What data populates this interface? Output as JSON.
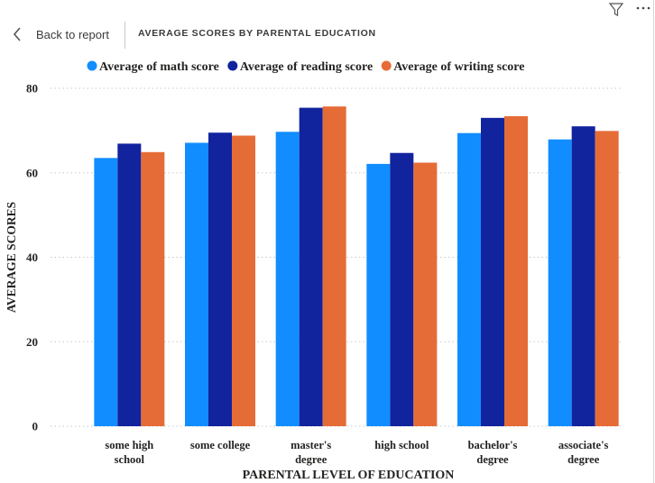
{
  "header": {
    "back_label": "Back to report",
    "title": "AVERAGE SCORES BY PARENTAL EDUCATION",
    "icons": [
      "chevron-left-icon",
      "filter-icon",
      "more-options-icon"
    ]
  },
  "chart_data": {
    "type": "bar",
    "categories": [
      [
        "some high",
        "school"
      ],
      [
        "some college"
      ],
      [
        "master's",
        "degree"
      ],
      [
        "high school"
      ],
      [
        "bachelor's",
        "degree"
      ],
      [
        "associate's",
        "degree"
      ]
    ],
    "series": [
      {
        "name": "Average of math score",
        "color": "#118dff",
        "values": [
          63.5,
          67.1,
          69.7,
          62.1,
          69.4,
          67.9
        ]
      },
      {
        "name": "Average of reading score",
        "color": "#12239e",
        "values": [
          66.9,
          69.5,
          75.4,
          64.7,
          73.0,
          71.0
        ]
      },
      {
        "name": "Average of writing score",
        "color": "#e66c37",
        "values": [
          64.9,
          68.8,
          75.7,
          62.4,
          73.4,
          69.9
        ]
      }
    ],
    "xlabel": "PARENTAL LEVEL OF EDUCATION",
    "ylabel": "AVERAGE SCORES",
    "ylim": [
      0,
      80
    ],
    "yticks": [
      "0",
      "20",
      "40",
      "60",
      "80"
    ],
    "grid": true,
    "legend_position": "top"
  }
}
